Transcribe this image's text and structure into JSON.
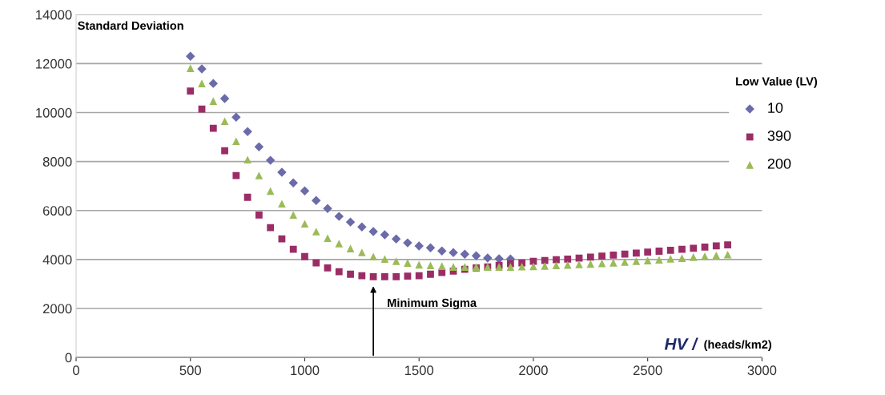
{
  "chart_data": {
    "type": "scatter",
    "xlabel": "HV /",
    "legend_title": "Low Value (LV)",
    "x": [
      500,
      550,
      600,
      650,
      700,
      750,
      800,
      850,
      900,
      950,
      1000,
      1050,
      1100,
      1150,
      1200,
      1250,
      1300,
      1350,
      1400,
      1450,
      1500,
      1550,
      1600,
      1650,
      1700,
      1750,
      1800,
      1850,
      1900,
      1950,
      2000,
      2050,
      2100,
      2150,
      2200,
      2250,
      2300,
      2350,
      2400,
      2450,
      2500,
      2550,
      2600,
      2650,
      2700,
      2750,
      2800,
      2850
    ],
    "series": [
      {
        "name": "10",
        "color": "#6b6baa",
        "marker": "diamond",
        "values": [
          12300,
          11780,
          11190,
          10570,
          9810,
          9220,
          8600,
          8050,
          7560,
          7130,
          6800,
          6410,
          6080,
          5760,
          5530,
          5330,
          5140,
          5010,
          4840,
          4680,
          4550,
          4480,
          4350,
          4280,
          4220,
          4150,
          4060,
          4030,
          4020,
          null,
          null,
          null,
          null,
          null,
          null,
          null,
          null,
          null,
          null,
          null,
          null,
          null,
          null,
          null,
          null,
          null,
          null,
          null
        ]
      },
      {
        "name": "390",
        "color": "#9b2d66",
        "marker": "square",
        "values": [
          10880,
          10140,
          9360,
          8440,
          7430,
          6540,
          5820,
          5300,
          4840,
          4420,
          4120,
          3860,
          3660,
          3500,
          3400,
          3340,
          3300,
          3300,
          3300,
          3320,
          3340,
          3400,
          3470,
          3530,
          3600,
          3660,
          3700,
          3760,
          3830,
          3860,
          3930,
          3960,
          3990,
          4020,
          4060,
          4100,
          4140,
          4180,
          4220,
          4260,
          4300,
          4340,
          4380,
          4420,
          4460,
          4510,
          4560,
          4600
        ]
      },
      {
        "name": "200",
        "color": "#9bbb59",
        "marker": "triangle",
        "values": [
          11810,
          11190,
          10470,
          9650,
          8830,
          8080,
          7430,
          6800,
          6280,
          5820,
          5460,
          5140,
          4870,
          4650,
          4450,
          4290,
          4120,
          4020,
          3930,
          3860,
          3790,
          3760,
          3730,
          3700,
          3700,
          3700,
          3700,
          3700,
          3700,
          3710,
          3720,
          3740,
          3760,
          3780,
          3800,
          3820,
          3840,
          3870,
          3900,
          3930,
          3960,
          3990,
          4030,
          4060,
          4100,
          4130,
          4170,
          4200
        ]
      }
    ],
    "xlim": [
      0,
      3000
    ],
    "xticks": [
      0,
      500,
      1000,
      1500,
      2000,
      2500,
      3000
    ],
    "ylim": [
      0,
      14000
    ],
    "yticks": [
      0,
      2000,
      4000,
      6000,
      8000,
      10000,
      12000,
      14000
    ],
    "grid": "y",
    "legend": "right",
    "annotations": [
      "Standard Deviation",
      {
        "text": "Minimum Sigma",
        "x": 1300,
        "y": 3000
      },
      "(heads/km2)"
    ]
  }
}
